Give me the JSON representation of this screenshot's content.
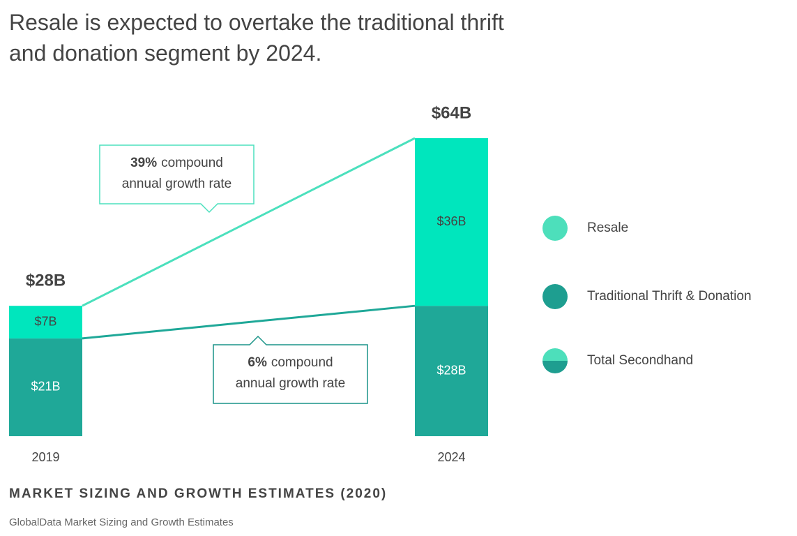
{
  "chart_data": {
    "type": "stacked_bar",
    "title": "Resale is expected to overtake the traditional thrift and donation segment by 2024.",
    "categories": [
      "2019",
      "2024"
    ],
    "series": [
      {
        "name": "Traditional Thrift & Donation",
        "color": "#1fa898",
        "values": [
          21,
          28
        ],
        "value_labels": [
          "$21B",
          "$28B"
        ]
      },
      {
        "name": "Resale",
        "color": "#00e6bd",
        "values": [
          7,
          36
        ],
        "value_labels": [
          "$7B",
          "$36B"
        ]
      }
    ],
    "totals": {
      "name": "Total Secondhand",
      "values": [
        28,
        64
      ],
      "value_labels": [
        "$28B",
        "$64B"
      ]
    },
    "annotations": [
      {
        "rate": "39%",
        "text": [
          "compound",
          "annual growth rate"
        ]
      },
      {
        "rate": "6%",
        "text": [
          "compound",
          "annual growth rate"
        ]
      }
    ],
    "footer_title": "MARKET SIZING AND GROWTH ESTIMATES (2020)",
    "source": "GlobalData Market Sizing and Growth Estimates"
  }
}
